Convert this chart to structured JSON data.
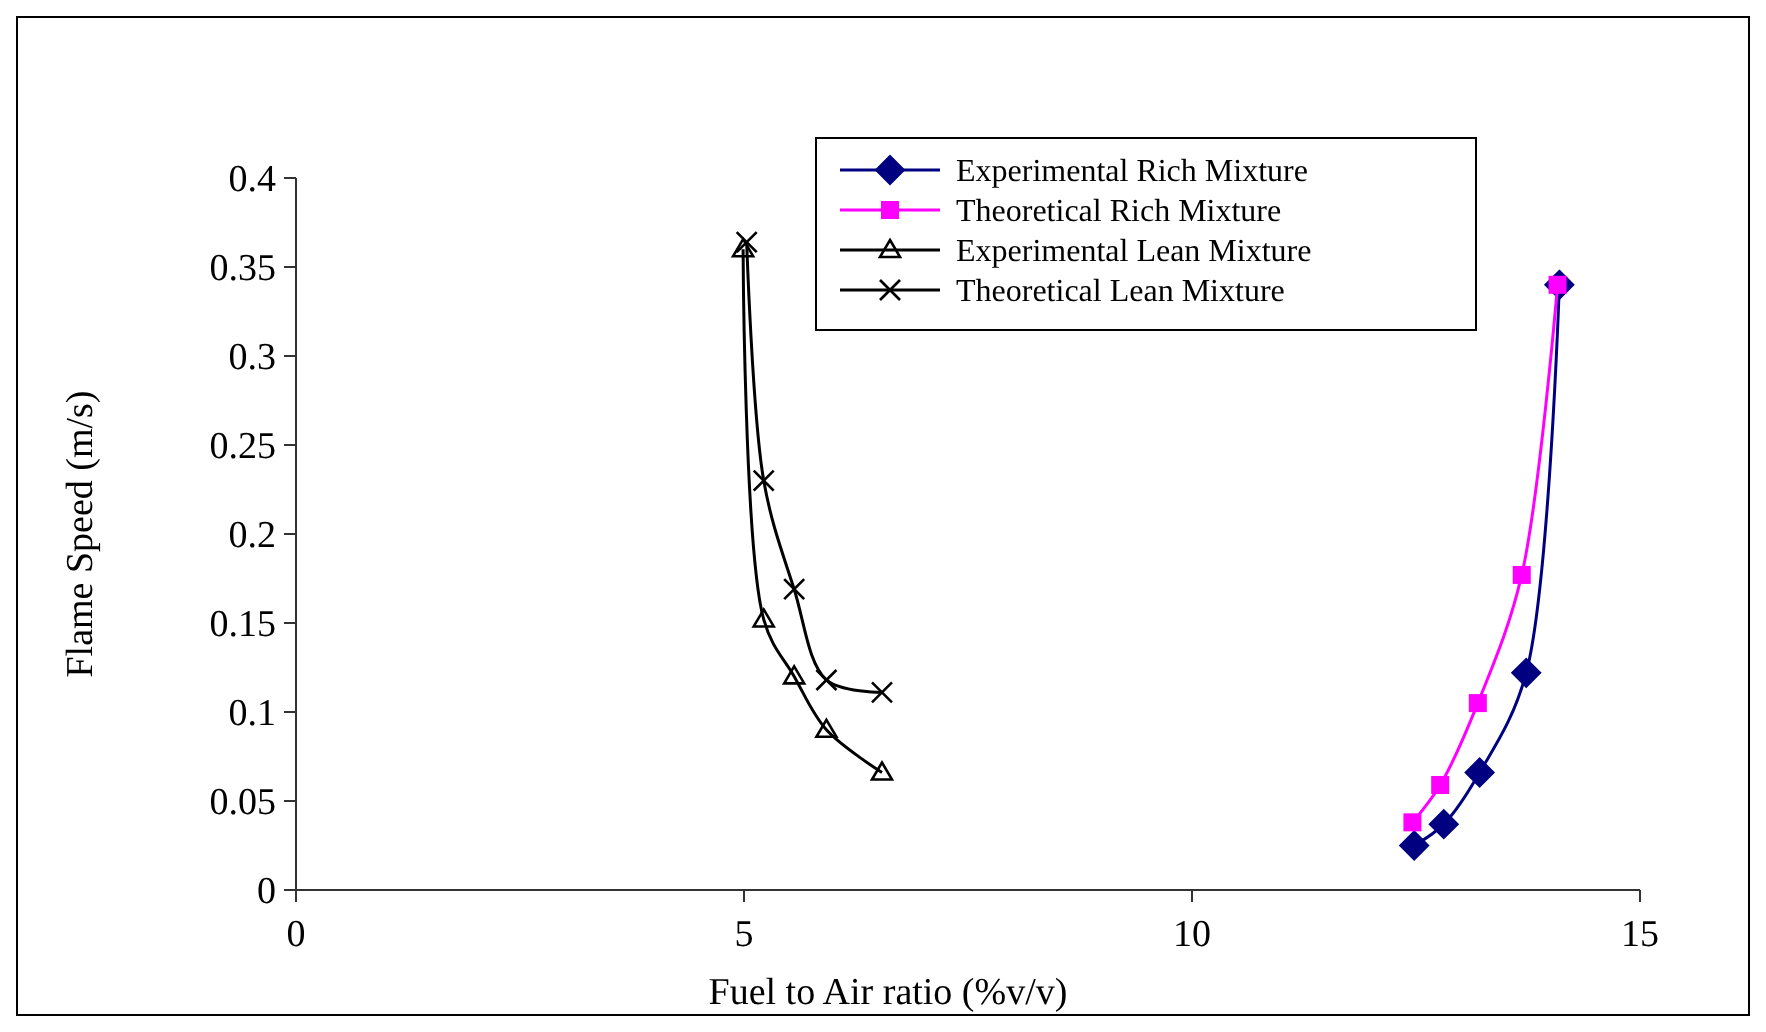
{
  "chart_data": {
    "type": "line",
    "xlabel": "Fuel to Air ratio (%v/v)",
    "ylabel": "Flame Speed (m/s)",
    "xlim": [
      0,
      15
    ],
    "xticks": [
      0,
      5,
      10,
      15
    ],
    "ylim": [
      0,
      0.4
    ],
    "yticks": [
      0,
      0.05,
      0.1,
      0.15,
      0.2,
      0.25,
      0.3,
      0.35,
      0.4
    ],
    "grid": false,
    "legend": "top right",
    "series": [
      {
        "name": "Experimental Rich Mixture",
        "color": "#000080",
        "marker": "diamond",
        "x": [
          12.48,
          12.81,
          13.21,
          13.73,
          14.1
        ],
        "values": [
          0.025,
          0.037,
          0.066,
          0.122,
          0.34
        ]
      },
      {
        "name": "Theoretical Rich Mixture",
        "color": "#ff00ff",
        "marker": "square",
        "x": [
          12.46,
          12.77,
          13.19,
          13.68,
          14.08
        ],
        "values": [
          0.038,
          0.059,
          0.105,
          0.177,
          0.34
        ]
      },
      {
        "name": "Experimental Lean Mixture",
        "color": "#000000",
        "marker": "triangle",
        "x": [
          4.99,
          5.22,
          5.56,
          5.92,
          6.54
        ],
        "values": [
          0.36,
          0.152,
          0.12,
          0.09,
          0.066
        ]
      },
      {
        "name": "Theoretical Lean Mixture",
        "color": "#000000",
        "marker": "cross",
        "x": [
          5.03,
          5.22,
          5.56,
          5.92,
          6.54
        ],
        "values": [
          0.364,
          0.23,
          0.169,
          0.118,
          0.111
        ]
      }
    ]
  }
}
